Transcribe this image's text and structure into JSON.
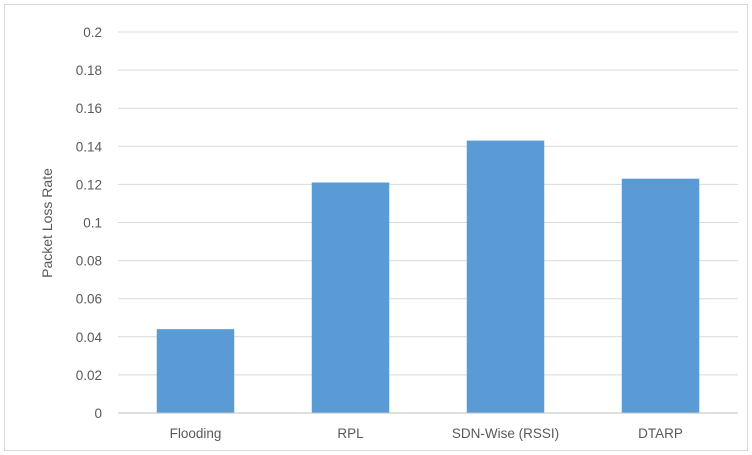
{
  "chart_data": {
    "type": "bar",
    "title": "",
    "xlabel": "",
    "ylabel": "Packet Loss Rate",
    "categories": [
      "Flooding",
      "RPL",
      "SDN-Wise (RSSI)",
      "DTARP"
    ],
    "values": [
      0.044,
      0.121,
      0.143,
      0.123
    ],
    "ylim": [
      0,
      0.2
    ],
    "yticks": [
      0,
      0.02,
      0.04,
      0.06,
      0.08,
      0.1,
      0.12,
      0.14,
      0.16,
      0.18,
      0.2
    ],
    "ytick_labels": [
      "0",
      "0.02",
      "0.04",
      "0.06",
      "0.08",
      "0.1",
      "0.12",
      "0.14",
      "0.16",
      "0.18",
      "0.2"
    ],
    "grid": true,
    "legend": "none",
    "colors": {
      "bar": "#5b9bd5",
      "grid": "#d9d9d9",
      "axis": "#bfbfbf",
      "text": "#595959"
    }
  }
}
